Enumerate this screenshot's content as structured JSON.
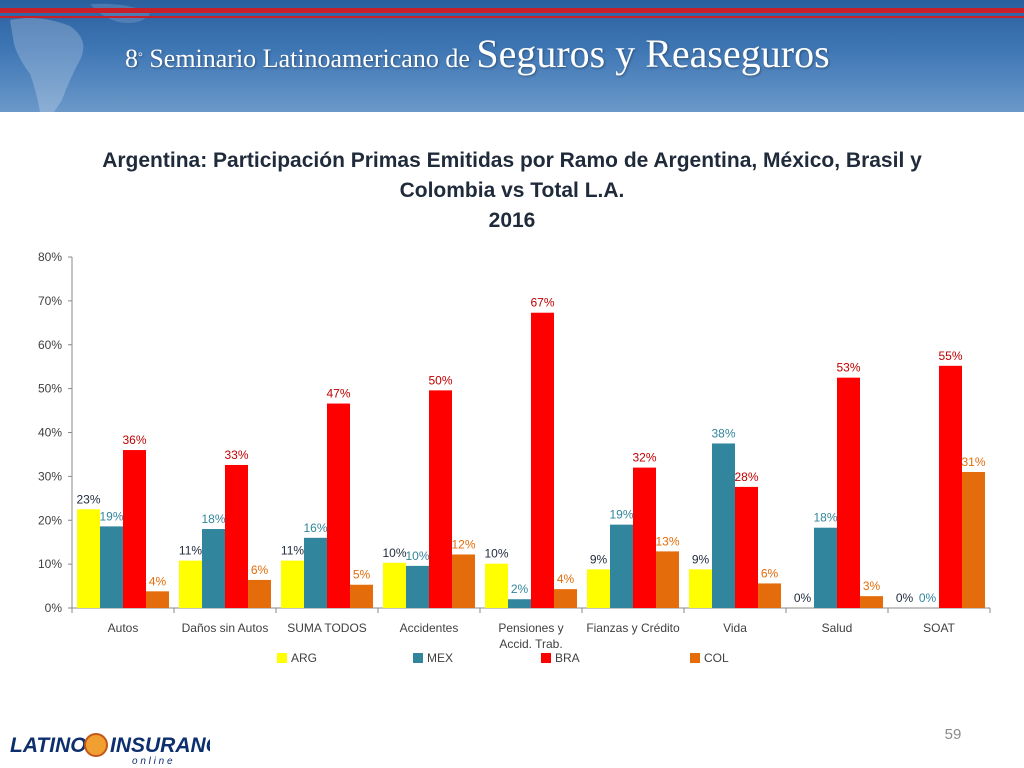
{
  "header": {
    "edition": "8",
    "edition_sup": "°",
    "title_pre": " Seminario Latinoamericano de ",
    "title_main": "Seguros y Reaseguros"
  },
  "chart_title": {
    "line1": "Argentina: Participación Primas Emitidas por Ramo de Argentina, México, Brasil y",
    "line2": "Colombia vs Total L.A.",
    "line3": "2016"
  },
  "chart_data": {
    "type": "bar",
    "categories": [
      [
        "Autos"
      ],
      [
        "Daños sin Autos"
      ],
      [
        "SUMA TODOS"
      ],
      [
        "Accidentes"
      ],
      [
        "Pensiones y",
        "Accid. Trab."
      ],
      [
        "Fianzas y Crédito"
      ],
      [
        "Vida"
      ],
      [
        "Salud"
      ],
      [
        "SOAT"
      ]
    ],
    "series": [
      {
        "name": "ARG",
        "color": "#ffff00",
        "label_color": "#1f2a3a",
        "values": [
          22.5,
          10.8,
          10.8,
          10.3,
          10.1,
          8.8,
          8.8,
          0,
          0
        ],
        "labels": [
          "23%",
          "11%",
          "11%",
          "10%",
          "10%",
          "9%",
          "9%",
          "0%",
          "0%"
        ]
      },
      {
        "name": "MEX",
        "color": "#31859c",
        "label_color": "#31859c",
        "values": [
          18.6,
          18.0,
          16.0,
          9.6,
          2.0,
          19.0,
          37.5,
          18.3,
          0
        ],
        "labels": [
          "19%",
          "18%",
          "16%",
          "10%",
          "2%",
          "19%",
          "38%",
          "18%",
          "0%"
        ]
      },
      {
        "name": "BRA",
        "color": "#ff0000",
        "label_color": "#c00000",
        "values": [
          36.0,
          32.6,
          46.6,
          49.6,
          67.3,
          32.0,
          27.6,
          52.5,
          55.2
        ],
        "labels": [
          "36%",
          "33%",
          "47%",
          "50%",
          "67%",
          "32%",
          "28%",
          "53%",
          "55%"
        ]
      },
      {
        "name": "COL",
        "color": "#e46c0a",
        "label_color": "#e46c0a",
        "values": [
          3.8,
          6.4,
          5.3,
          12.2,
          4.3,
          12.9,
          5.6,
          2.7,
          31.0
        ],
        "labels": [
          "4%",
          "6%",
          "5%",
          "12%",
          "4%",
          "13%",
          "6%",
          "3%",
          "31%"
        ]
      }
    ],
    "ylim": [
      0,
      80
    ],
    "yticks": [
      "0%",
      "10%",
      "20%",
      "30%",
      "40%",
      "50%",
      "60%",
      "70%",
      "80%"
    ],
    "grid": false,
    "legend_position": "bottom"
  },
  "footer": {
    "logo_latino": "LATINO",
    "logo_insurance": "INSURANCE",
    "logo_sub": "o n   l i n e",
    "page_number": "59"
  }
}
